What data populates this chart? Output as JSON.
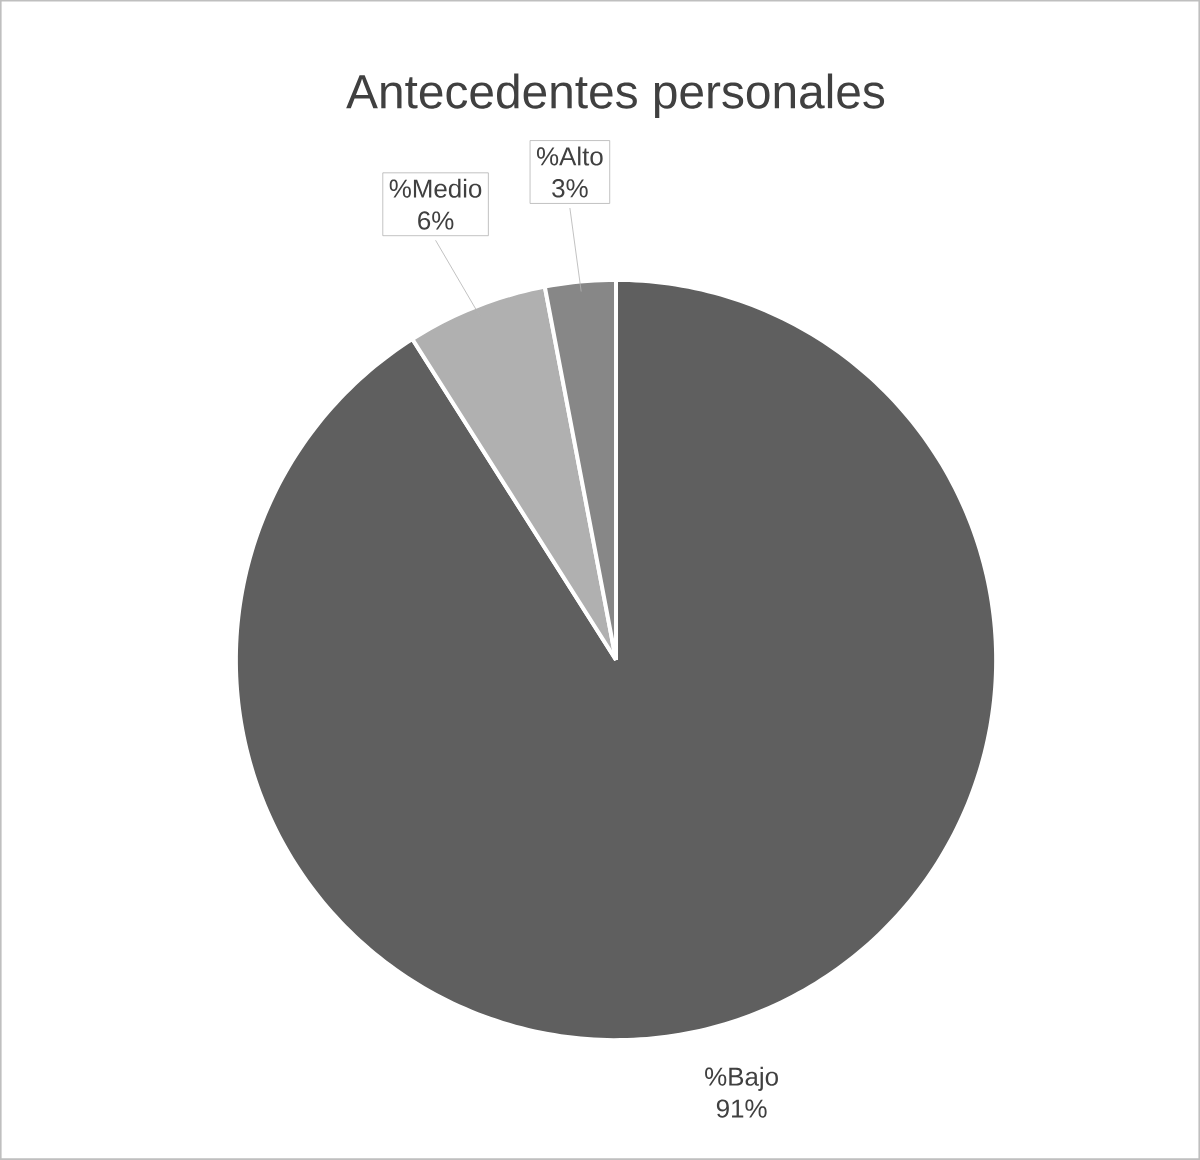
{
  "chart_data": {
    "type": "pie",
    "title": "Antecedentes personales",
    "categories": [
      "%Bajo",
      "%Medio",
      "%Alto"
    ],
    "values": [
      91,
      6,
      3
    ],
    "colors": [
      "#5f5f5f",
      "#b0b0b0",
      "#878787"
    ],
    "value_labels": [
      "91%",
      "6%",
      "3%"
    ]
  }
}
